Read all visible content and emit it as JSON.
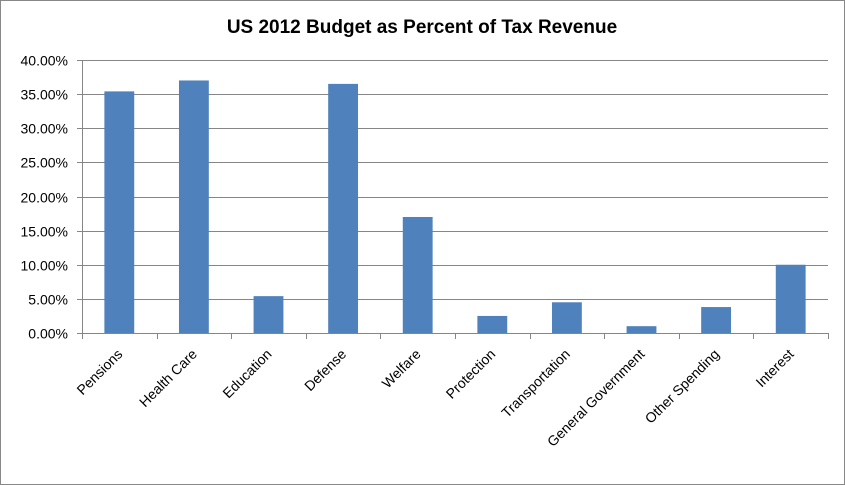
{
  "chart_data": {
    "type": "bar",
    "title": "US 2012 Budget as Percent of Tax Revenue",
    "xlabel": "",
    "ylabel": "",
    "categories": [
      "Pensions",
      "Health Care",
      "Education",
      "Defense",
      "Welfare",
      "Protection",
      "Transportation",
      "General Government",
      "Other Spending",
      "Interest"
    ],
    "values": [
      35.4,
      37.0,
      5.4,
      36.5,
      17.0,
      2.5,
      4.5,
      1.0,
      3.8,
      10.0
    ],
    "value_unit": "percent",
    "ylim": [
      0,
      40
    ],
    "yticks": [
      0,
      5,
      10,
      15,
      20,
      25,
      30,
      35,
      40
    ],
    "ytick_labels": [
      "0.00%",
      "5.00%",
      "10.00%",
      "15.00%",
      "20.00%",
      "25.00%",
      "30.00%",
      "35.00%",
      "40.00%"
    ],
    "grid": true,
    "legend": "none",
    "colors": {
      "bar": "#4f81bd",
      "grid": "#868686",
      "axis": "#868686"
    }
  }
}
